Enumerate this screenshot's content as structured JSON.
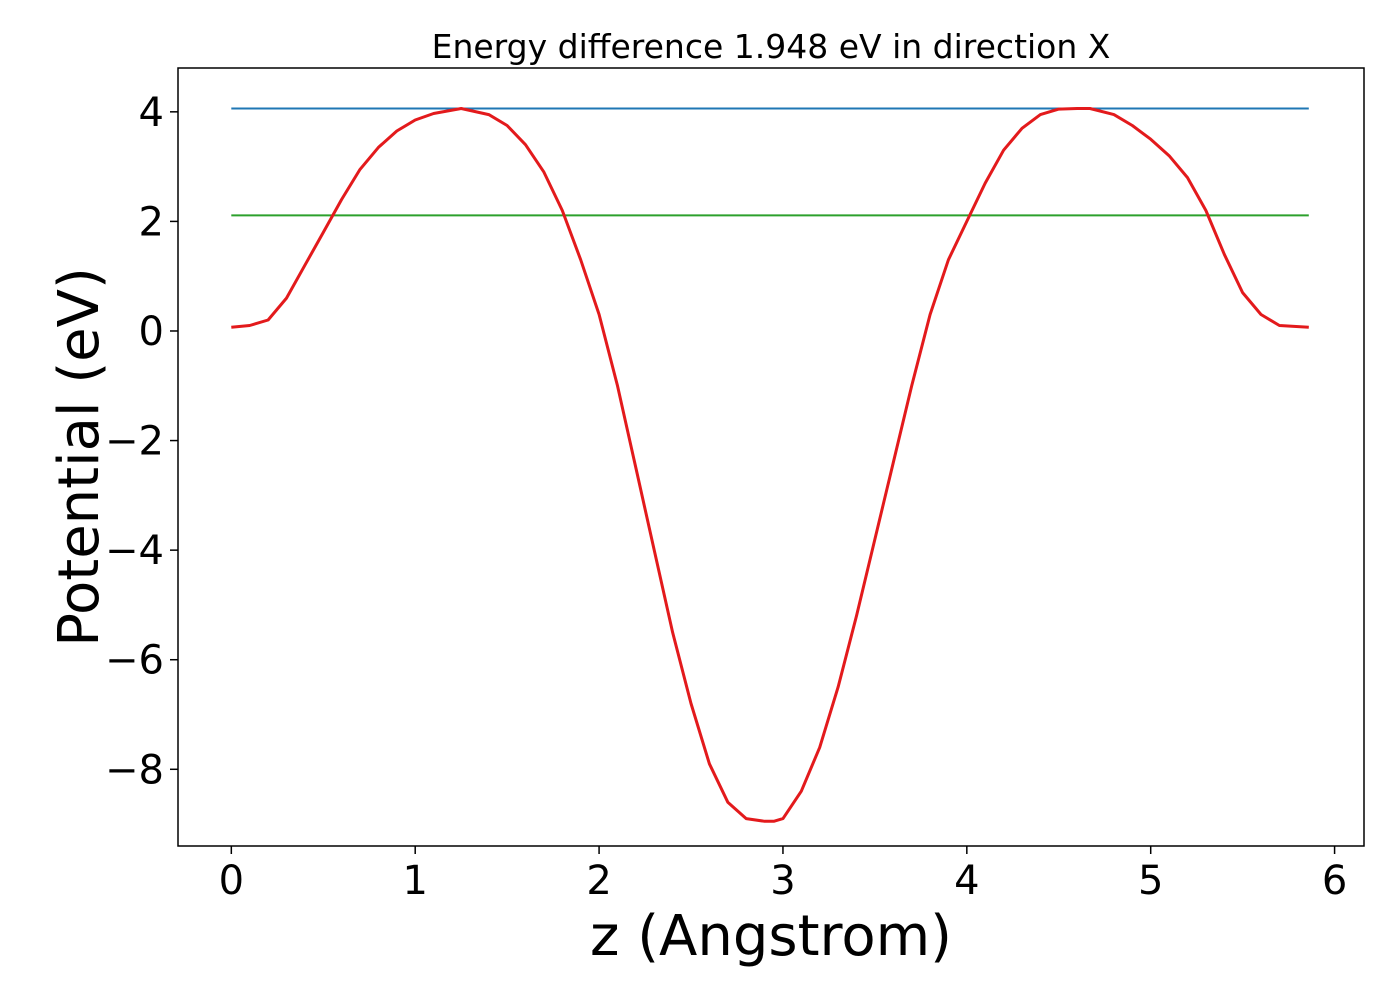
{
  "chart_data": {
    "type": "line",
    "title": "Energy difference 1.948 eV in direction X",
    "xlabel": "z (Angstrom)",
    "ylabel": "Potential (eV)",
    "xlim": [
      -0.29,
      6.16
    ],
    "ylim": [
      -9.4,
      4.8
    ],
    "xticks": [
      0,
      1,
      2,
      3,
      4,
      5,
      6
    ],
    "xtick_labels": [
      "0",
      "1",
      "2",
      "3",
      "4",
      "5",
      "6"
    ],
    "yticks": [
      -8,
      -6,
      -4,
      -2,
      0,
      2,
      4
    ],
    "ytick_labels": [
      "−8",
      "−6",
      "−4",
      "−2",
      "0",
      "2",
      "4"
    ],
    "grid": false,
    "legend": "none",
    "series": [
      {
        "color": "#1f77b4",
        "x": [
          0,
          5.86
        ],
        "y": [
          4.06,
          4.06
        ]
      },
      {
        "color": "#2ca02c",
        "x": [
          0,
          5.86
        ],
        "y": [
          2.11,
          2.11
        ]
      },
      {
        "color": "#e31a1c",
        "x": [
          0,
          0.1,
          0.2,
          0.3,
          0.4,
          0.5,
          0.6,
          0.7,
          0.8,
          0.9,
          1.0,
          1.1,
          1.25,
          1.4,
          1.5,
          1.6,
          1.7,
          1.8,
          1.9,
          2.0,
          2.1,
          2.2,
          2.3,
          2.4,
          2.5,
          2.6,
          2.7,
          2.8,
          2.9,
          2.95,
          3.0,
          3.1,
          3.2,
          3.3,
          3.4,
          3.5,
          3.6,
          3.7,
          3.8,
          3.9,
          4.0,
          4.1,
          4.2,
          4.3,
          4.4,
          4.5,
          4.6,
          4.67,
          4.8,
          4.9,
          5.0,
          5.1,
          5.2,
          5.3,
          5.4,
          5.5,
          5.6,
          5.7,
          5.86
        ],
        "y": [
          0.07,
          0.1,
          0.2,
          0.6,
          1.2,
          1.8,
          2.4,
          2.95,
          3.35,
          3.65,
          3.85,
          3.97,
          4.06,
          3.95,
          3.75,
          3.4,
          2.9,
          2.2,
          1.3,
          0.3,
          -1.0,
          -2.5,
          -4.0,
          -5.5,
          -6.8,
          -7.9,
          -8.6,
          -8.9,
          -8.95,
          -8.95,
          -8.9,
          -8.4,
          -7.6,
          -6.5,
          -5.2,
          -3.8,
          -2.4,
          -1.0,
          0.3,
          1.3,
          2.0,
          2.7,
          3.3,
          3.7,
          3.95,
          4.05,
          4.06,
          4.06,
          3.95,
          3.75,
          3.5,
          3.2,
          2.8,
          2.2,
          1.4,
          0.7,
          0.3,
          0.1,
          0.07
        ]
      }
    ]
  }
}
